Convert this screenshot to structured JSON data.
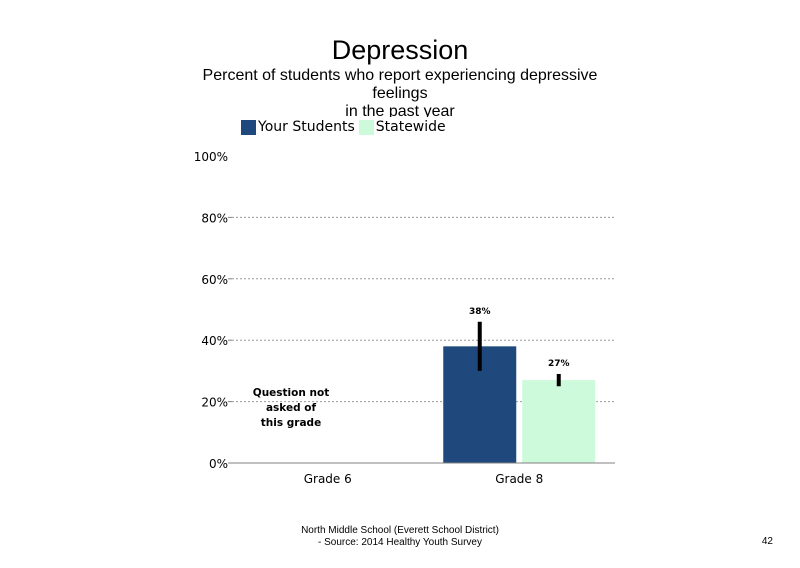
{
  "slide": {
    "title": "Depression",
    "subtitle_lines": [
      "Percent of students who report experiencing depressive",
      "feelings",
      "in the past year"
    ],
    "note_lines": [
      "Question not",
      "asked of",
      "this grade"
    ],
    "footer_lines": [
      "North Middle School (Everett School District)",
      "- Source: 2014 Healthy Youth Survey"
    ],
    "page_number": "42"
  },
  "chart_data": {
    "type": "bar",
    "title": "Depression",
    "categories": [
      "Grade 6",
      "Grade 8"
    ],
    "series": [
      {
        "name": "Your Students",
        "color": "#1f497d",
        "values": [
          null,
          38
        ],
        "labels": [
          "",
          "38%"
        ],
        "error_low": [
          null,
          30
        ],
        "error_high": [
          null,
          46
        ]
      },
      {
        "name": "Statewide",
        "color": "#ccfadb",
        "values": [
          null,
          27
        ],
        "labels": [
          "",
          "27%"
        ],
        "error_low": [
          null,
          25
        ],
        "error_high": [
          null,
          29
        ]
      }
    ],
    "yticks": [
      "0%",
      "20%",
      "40%",
      "60%",
      "80%",
      "100%"
    ],
    "ylim": [
      0,
      100
    ],
    "gridlines": true,
    "error_bars": true,
    "legend_position": "top-left"
  }
}
